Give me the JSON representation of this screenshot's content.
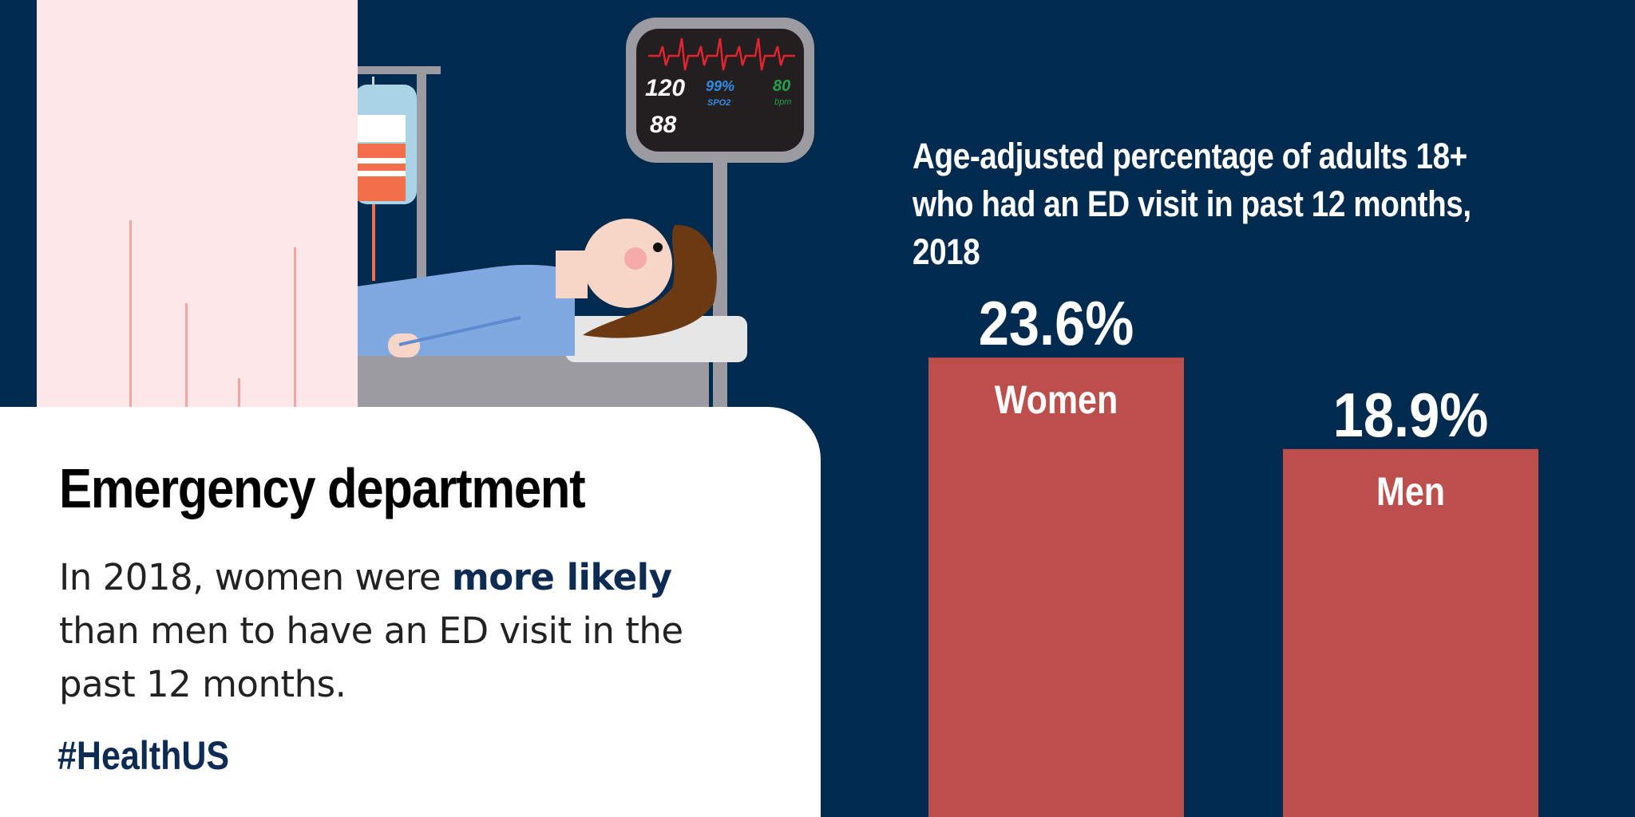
{
  "colors": {
    "background": "#002a4e",
    "bar": "#bc4e4b",
    "card": "#ffffff",
    "accent_text": "#0e2b54"
  },
  "monitor": {
    "systolic": "120",
    "diastolic": "88",
    "spo2_value": "99%",
    "spo2_label": "SPO2",
    "heart_rate": "80",
    "heart_rate_unit": "bpm"
  },
  "card": {
    "title": "Emergency department",
    "body_before": "In 2018, women were ",
    "body_emphasis": "more likely",
    "body_after": " than men to have an ED visit in the past 12 months.",
    "hashtag": "#HealthUS"
  },
  "chart_data": {
    "type": "bar",
    "title": "Age-adjusted percentage of adults 18+ who had an ED visit in past 12 months, 2018",
    "categories": [
      "Women",
      "Men"
    ],
    "values": [
      23.6,
      18.9
    ],
    "value_labels": [
      "23.6%",
      "18.9%"
    ],
    "unit": "%",
    "xlabel": "",
    "ylabel": "",
    "grid": false,
    "legend": "none"
  }
}
